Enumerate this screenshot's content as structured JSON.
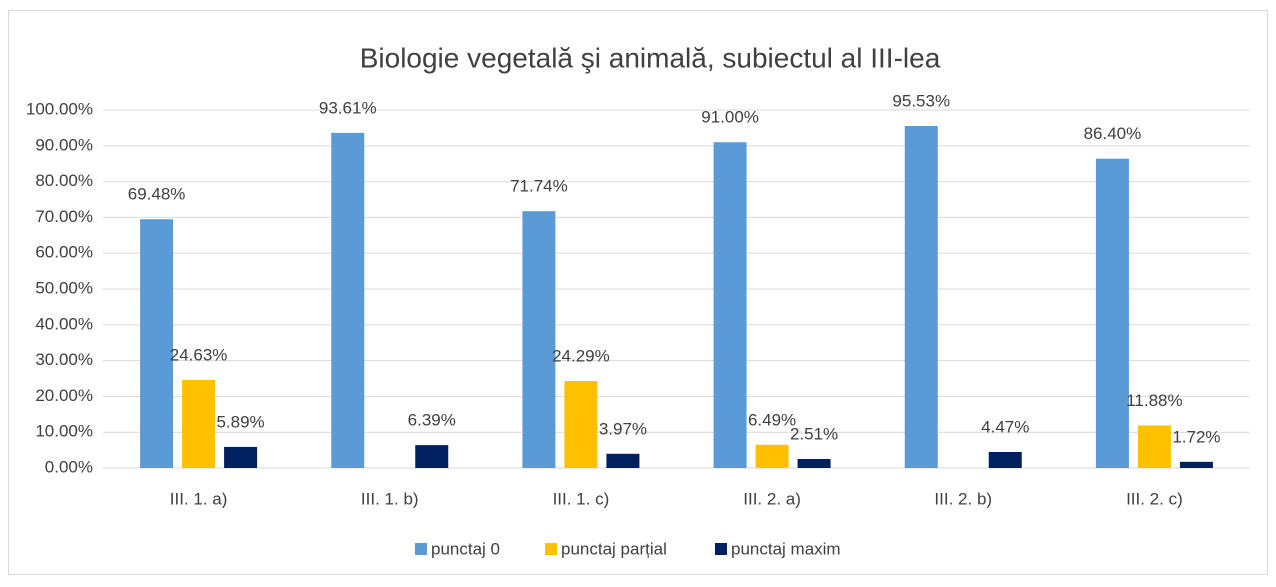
{
  "chart_data": {
    "type": "bar",
    "title": "Biologie vegetală şi animală, subiectul al III-lea",
    "categories": [
      "III. 1. a)",
      "III. 1. b)",
      "III. 1. c)",
      "III. 2. a)",
      "III. 2. b)",
      "III. 2. c)"
    ],
    "series": [
      {
        "name": "punctaj 0",
        "color": "#5b9bd5",
        "values": [
          69.48,
          93.61,
          71.74,
          91.0,
          95.53,
          86.4
        ],
        "value_labels": [
          "69.48%",
          "93.61%",
          "71.74%",
          "91.00%",
          "95.53%",
          "86.40%"
        ]
      },
      {
        "name": "punctaj parțial",
        "color": "#ffc000",
        "values": [
          24.63,
          null,
          24.29,
          6.49,
          null,
          11.88
        ],
        "value_labels": [
          "24.63%",
          null,
          "24.29%",
          "6.49%",
          null,
          "11.88%"
        ]
      },
      {
        "name": "punctaj maxim",
        "color": "#002060",
        "values": [
          5.89,
          6.39,
          3.97,
          2.51,
          4.47,
          1.72
        ],
        "value_labels": [
          "5.89%",
          "6.39%",
          "3.97%",
          "2.51%",
          "4.47%",
          "1.72%"
        ]
      }
    ],
    "ylim": [
      0,
      100
    ],
    "yticks": [
      {
        "value": 0,
        "label": "0.00%"
      },
      {
        "value": 10,
        "label": "10.00%"
      },
      {
        "value": 20,
        "label": "20.00%"
      },
      {
        "value": 30,
        "label": "30.00%"
      },
      {
        "value": 40,
        "label": "40.00%"
      },
      {
        "value": 50,
        "label": "50.00%"
      },
      {
        "value": 60,
        "label": "60.00%"
      },
      {
        "value": 70,
        "label": "70.00%"
      },
      {
        "value": 80,
        "label": "80.00%"
      },
      {
        "value": 90,
        "label": "90.00%"
      },
      {
        "value": 100,
        "label": "100.00%"
      }
    ],
    "grid": true,
    "legend": "bottom"
  }
}
